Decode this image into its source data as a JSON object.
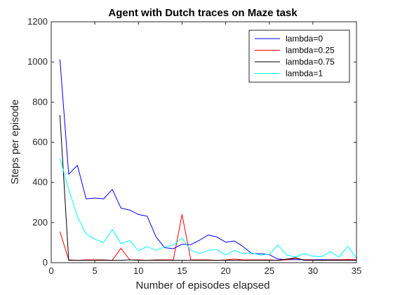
{
  "chart_data": {
    "type": "line",
    "title": "Agent with Dutch traces on Maze task",
    "xlabel": "Number of episodes elapsed",
    "ylabel": "Steps per episode",
    "xlim": [
      0,
      35
    ],
    "ylim": [
      0,
      1200
    ],
    "xticks": [
      0,
      5,
      10,
      15,
      20,
      25,
      30,
      35
    ],
    "yticks": [
      0,
      200,
      400,
      600,
      800,
      1000,
      1200
    ],
    "grid": false,
    "legend_position": "top-right",
    "x": [
      1,
      2,
      3,
      4,
      5,
      6,
      7,
      8,
      9,
      10,
      11,
      12,
      13,
      14,
      15,
      16,
      17,
      18,
      19,
      20,
      21,
      22,
      23,
      24,
      25,
      26,
      27,
      28,
      29,
      30,
      31,
      32,
      33,
      34,
      35
    ],
    "series": [
      {
        "name": "lambda=0",
        "color": "#0000ff",
        "values": [
          1012,
          440,
          485,
          318,
          322,
          318,
          365,
          272,
          262,
          240,
          232,
          130,
          75,
          70,
          92,
          90,
          112,
          138,
          128,
          102,
          108,
          80,
          45,
          45,
          40,
          18,
          15,
          15,
          15,
          15,
          15,
          15,
          15,
          15,
          15
        ]
      },
      {
        "name": "lambda=0.25",
        "color": "#ff0000",
        "values": [
          155,
          14,
          12,
          14,
          14,
          14,
          12,
          72,
          14,
          14,
          12,
          14,
          14,
          14,
          240,
          14,
          14,
          14,
          12,
          14,
          18,
          14,
          14,
          14,
          14,
          12,
          14,
          22,
          14,
          14,
          12,
          14,
          14,
          16,
          14
        ]
      },
      {
        "name": "lambda=0.75",
        "color": "#000000",
        "values": [
          735,
          12,
          12,
          12,
          12,
          12,
          12,
          12,
          14,
          12,
          12,
          12,
          12,
          12,
          12,
          12,
          12,
          12,
          12,
          12,
          12,
          12,
          12,
          12,
          12,
          12,
          18,
          24,
          12,
          12,
          12,
          12,
          12,
          12,
          12
        ]
      },
      {
        "name": "lambda=1",
        "color": "#00ffff",
        "values": [
          520,
          365,
          230,
          142,
          118,
          100,
          165,
          95,
          110,
          60,
          80,
          62,
          78,
          88,
          122,
          62,
          45,
          62,
          65,
          38,
          62,
          45,
          48,
          38,
          42,
          88,
          38,
          28,
          45,
          32,
          30,
          55,
          28,
          82,
          22
        ]
      }
    ]
  }
}
